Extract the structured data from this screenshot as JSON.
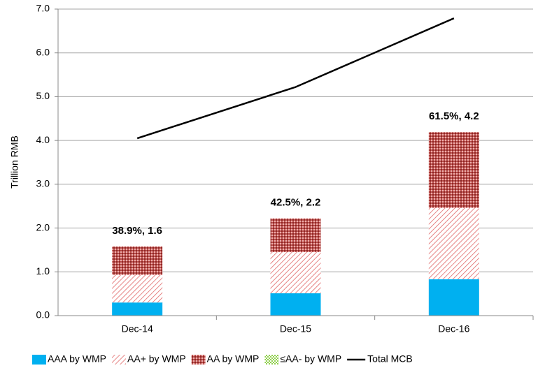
{
  "chart_data": {
    "type": "stacked-bar-line",
    "y_label": "Trillion RMB",
    "categories": [
      "Dec-14",
      "Dec-15",
      "Dec-16"
    ],
    "series": [
      {
        "name": "AAA by WMP",
        "color": "#00b0f0",
        "pattern": "solid",
        "values": [
          0.3,
          0.51,
          0.83
        ]
      },
      {
        "name": "AA+ by WMP",
        "color": "#e06666",
        "pattern": "diagonal",
        "values": [
          0.63,
          0.94,
          1.63
        ]
      },
      {
        "name": "AA by WMP",
        "color": "#b03a3a",
        "pattern": "crosshatch",
        "values": [
          0.65,
          0.77,
          1.73
        ]
      },
      {
        "name": "≤AA- by WMP",
        "color": "#92d050",
        "pattern": "dots",
        "values": [
          0,
          0,
          0
        ]
      },
      {
        "name": "Total MCB",
        "color": "#000000",
        "type": "line",
        "values": [
          4.05,
          5.22,
          6.79
        ]
      }
    ],
    "annotations": [
      "38.9%, 1.6",
      "42.5%, 2.2",
      "61.5%, 4.2"
    ],
    "ylim": [
      0,
      7
    ],
    "yticks": [
      {
        "value": 0,
        "label": "0.0"
      },
      {
        "value": 1,
        "label": "1.0"
      },
      {
        "value": 2,
        "label": "2.0"
      },
      {
        "value": 3,
        "label": "3.0"
      },
      {
        "value": 4,
        "label": "4.0"
      },
      {
        "value": 5,
        "label": "5.0"
      },
      {
        "value": 6,
        "label": "6.0"
      },
      {
        "value": 7,
        "label": "7.0"
      }
    ],
    "grid": true
  }
}
